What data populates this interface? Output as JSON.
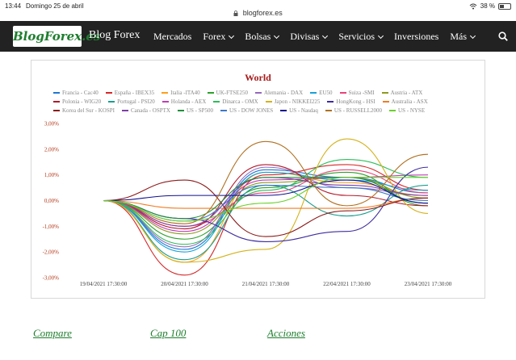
{
  "statusbar": {
    "time": "13:44",
    "date": "Domingo 25 de abril",
    "url": "blogforex.es",
    "battery": "38 %",
    "battery_level": 0.38
  },
  "header": {
    "logo": "BlogForex.es",
    "brand": "Blog Forex",
    "menu": [
      {
        "label": "Mercados",
        "dropdown": false
      },
      {
        "label": "Forex",
        "dropdown": true
      },
      {
        "label": "Bolsas",
        "dropdown": true
      },
      {
        "label": "Divisas",
        "dropdown": true
      },
      {
        "label": "Servicios",
        "dropdown": true
      },
      {
        "label": "Inversiones",
        "dropdown": false
      },
      {
        "label": "Más",
        "dropdown": true
      }
    ],
    "search_icon": "search-icon"
  },
  "chart_data": {
    "type": "line",
    "title": "World",
    "x": [
      "19/04/2021 17:30:00",
      "20/04/2021 17:30:00",
      "21/04/2021 17:30:00",
      "22/04/2021 17:30:00",
      "23/04/2021 17:30:00"
    ],
    "ylim": [
      -3,
      3
    ],
    "yticks": [
      "3,00%",
      "2,00%",
      "1,00%",
      "0,00%",
      "-1,00%",
      "-2,00%",
      "-3,00%"
    ],
    "yticks_values": [
      3,
      2,
      1,
      0,
      -1,
      -2,
      -3
    ],
    "grid": false,
    "legend": "top",
    "series": [
      {
        "name": "Francia - Cac40",
        "color": "#1f77d4",
        "values": [
          0,
          -1.9,
          1.2,
          0.9,
          0.3
        ]
      },
      {
        "name": "España - IBEX35",
        "color": "#d62728",
        "values": [
          0,
          -2.9,
          1.0,
          1.4,
          0.4
        ]
      },
      {
        "name": "Italia -ITA40",
        "color": "#ff9f1a",
        "values": [
          0,
          -2.4,
          1.1,
          0.7,
          0.2
        ]
      },
      {
        "name": "UK-FTSE250",
        "color": "#2ca02c",
        "values": [
          0,
          -1.5,
          0.5,
          1.1,
          -0.2
        ]
      },
      {
        "name": "Alemania - DAX",
        "color": "#9467bd",
        "values": [
          0,
          -1.8,
          1.3,
          0.5,
          0.2
        ]
      },
      {
        "name": "EU50",
        "color": "#17a2d8",
        "values": [
          0,
          -2.0,
          1.1,
          0.8,
          0.4
        ]
      },
      {
        "name": "Suiza -SMI",
        "color": "#e8437a",
        "values": [
          0,
          -1.0,
          0.3,
          1.2,
          0.3
        ]
      },
      {
        "name": "Austria - ATX",
        "color": "#8c9b1e",
        "values": [
          0,
          -1.3,
          0.7,
          0.9,
          0.1
        ]
      },
      {
        "name": "Polonia - WIG20",
        "color": "#b2182b",
        "values": [
          0,
          -1.1,
          1.4,
          0.2,
          -0.2
        ]
      },
      {
        "name": "Portugal - PSI20",
        "color": "#1a9e8f",
        "values": [
          0,
          -2.3,
          0.6,
          -0.6,
          0.6
        ]
      },
      {
        "name": "Holanda - AEX",
        "color": "#c13cb6",
        "values": [
          0,
          -1.2,
          0.8,
          0.9,
          1.0
        ]
      },
      {
        "name": "Dinarca - OMX",
        "color": "#2bbf5a",
        "values": [
          0,
          -1.7,
          0.4,
          1.6,
          0.9
        ]
      },
      {
        "name": "Japon - NIKKEI225",
        "color": "#d4b21a",
        "values": [
          0,
          -2.4,
          -1.9,
          2.4,
          -0.5
        ]
      },
      {
        "name": "HongKong - HSI",
        "color": "#3f2b9e",
        "values": [
          0,
          -0.7,
          -1.6,
          -1.2,
          1.3
        ]
      },
      {
        "name": "Australia - ASX",
        "color": "#f07c22",
        "values": [
          0,
          -0.3,
          -0.3,
          -0.3,
          0.1
        ]
      },
      {
        "name": "Korea del Sur - KOSPI",
        "color": "#8b1a1a",
        "values": [
          0,
          0.8,
          -1.4,
          -0.4,
          0.1
        ]
      },
      {
        "name": "Canada - OSPTX",
        "color": "#7d3fa6",
        "values": [
          0,
          -1.0,
          0.9,
          0.6,
          0.2
        ]
      },
      {
        "name": "US - SP500",
        "color": "#1f8f3a",
        "values": [
          0,
          -0.7,
          0.9,
          0.9,
          -0.1
        ]
      },
      {
        "name": "US - DOW JONES",
        "color": "#3b78c9",
        "values": [
          0,
          -0.8,
          0.6,
          0.5,
          0.0
        ]
      },
      {
        "name": "US - Nasdaq",
        "color": "#10108f",
        "values": [
          0,
          0.2,
          0.2,
          0.8,
          -0.1
        ]
      },
      {
        "name": "US - RUSSELL2000",
        "color": "#b07020",
        "values": [
          0,
          -0.9,
          2.3,
          -0.2,
          1.8
        ]
      },
      {
        "name": "US - NYSE",
        "color": "#6ad12b",
        "values": [
          0,
          -0.8,
          -0.1,
          0.9,
          0.9
        ]
      }
    ]
  },
  "links": [
    {
      "label": "Compare"
    },
    {
      "label": "Cap 100 "
    },
    {
      "label": "Acciones"
    }
  ]
}
